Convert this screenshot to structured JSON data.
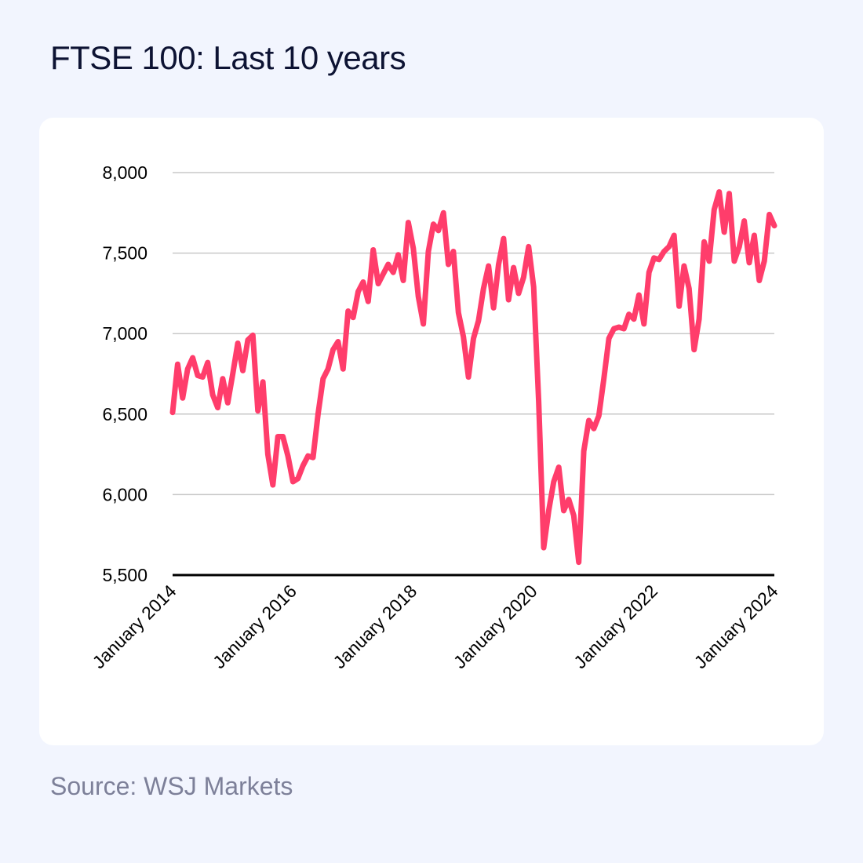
{
  "title": "FTSE 100: Last 10 years",
  "source": "Source: WSJ Markets",
  "colors": {
    "background": "#f2f5fe",
    "card": "#ffffff",
    "line": "#ff3d6b",
    "grid": "#c8c8c8",
    "axis": "#000000"
  },
  "chart_data": {
    "type": "line",
    "title": "FTSE 100: Last 10 years",
    "xlabel": "",
    "ylabel": "",
    "ylim": [
      5500,
      8000
    ],
    "xlim": [
      "2014-01",
      "2024-01"
    ],
    "y_ticks": [
      "8,000",
      "7,500",
      "7,000",
      "6,500",
      "6,000",
      "5,500"
    ],
    "y_tick_values": [
      8000,
      7500,
      7000,
      6500,
      6000,
      5500
    ],
    "x_ticks": [
      "January 2014",
      "January 2016",
      "January 2018",
      "January 2020",
      "January 2022",
      "January 2024"
    ],
    "x_tick_values": [
      "2014-01",
      "2016-01",
      "2018-01",
      "2020-01",
      "2022-01",
      "2024-01"
    ],
    "grid": true,
    "series": [
      {
        "x": [
          "2014-01",
          "2014-02",
          "2014-03",
          "2014-04",
          "2014-05",
          "2014-06",
          "2014-07",
          "2014-08",
          "2014-09",
          "2014-10",
          "2014-11",
          "2014-12",
          "2015-01",
          "2015-02",
          "2015-03",
          "2015-04",
          "2015-05",
          "2015-06",
          "2015-07",
          "2015-08",
          "2015-09",
          "2015-10",
          "2015-11",
          "2015-12",
          "2016-01",
          "2016-02",
          "2016-03",
          "2016-04",
          "2016-05",
          "2016-06",
          "2016-07",
          "2016-08",
          "2016-09",
          "2016-10",
          "2016-11",
          "2016-12",
          "2017-01",
          "2017-02",
          "2017-03",
          "2017-04",
          "2017-05",
          "2017-06",
          "2017-07",
          "2017-08",
          "2017-09",
          "2017-10",
          "2017-11",
          "2017-12",
          "2018-01",
          "2018-02",
          "2018-03",
          "2018-04",
          "2018-05",
          "2018-06",
          "2018-07",
          "2018-08",
          "2018-09",
          "2018-10",
          "2018-11",
          "2018-12",
          "2019-01",
          "2019-02",
          "2019-03",
          "2019-04",
          "2019-05",
          "2019-06",
          "2019-07",
          "2019-08",
          "2019-09",
          "2019-10",
          "2019-11",
          "2019-12",
          "2020-01",
          "2020-02",
          "2020-03",
          "2020-04",
          "2020-05",
          "2020-06",
          "2020-07",
          "2020-08",
          "2020-09",
          "2020-10",
          "2020-11",
          "2020-12",
          "2021-01",
          "2021-02",
          "2021-03",
          "2021-04",
          "2021-05",
          "2021-06",
          "2021-07",
          "2021-08",
          "2021-09",
          "2021-10",
          "2021-11",
          "2021-12",
          "2022-01",
          "2022-02",
          "2022-03",
          "2022-04",
          "2022-05",
          "2022-06",
          "2022-07",
          "2022-08",
          "2022-09",
          "2022-10",
          "2022-11",
          "2022-12",
          "2023-01",
          "2023-02",
          "2023-03",
          "2023-04",
          "2023-05",
          "2023-06",
          "2023-07",
          "2023-08",
          "2023-09",
          "2023-10",
          "2023-11",
          "2023-12",
          "2024-01"
        ],
        "values": [
          6510,
          6810,
          6600,
          6780,
          6850,
          6740,
          6730,
          6820,
          6620,
          6540,
          6720,
          6570,
          6750,
          6940,
          6770,
          6960,
          6990,
          6520,
          6700,
          6250,
          6060,
          6360,
          6360,
          6240,
          6080,
          6100,
          6180,
          6240,
          6230,
          6500,
          6720,
          6780,
          6900,
          6950,
          6780,
          7140,
          7100,
          7260,
          7320,
          7200,
          7520,
          7310,
          7370,
          7430,
          7380,
          7490,
          7330,
          7690,
          7530,
          7230,
          7060,
          7510,
          7680,
          7640,
          7750,
          7430,
          7510,
          7130,
          6980,
          6730,
          6970,
          7080,
          7280,
          7420,
          7160,
          7430,
          7590,
          7210,
          7410,
          7250,
          7350,
          7540,
          7290,
          6580,
          5670,
          5900,
          6080,
          6170,
          5900,
          5970,
          5870,
          5580,
          6270,
          6460,
          6410,
          6490,
          6720,
          6970,
          7030,
          7040,
          7030,
          7120,
          7090,
          7240,
          7060,
          7380,
          7470,
          7460,
          7510,
          7540,
          7610,
          7170,
          7420,
          7280,
          6900,
          7090,
          7570,
          7450,
          7770,
          7880,
          7630,
          7870,
          7450,
          7540,
          7700,
          7440,
          7610,
          7330,
          7450,
          7740,
          7670
        ]
      }
    ]
  }
}
